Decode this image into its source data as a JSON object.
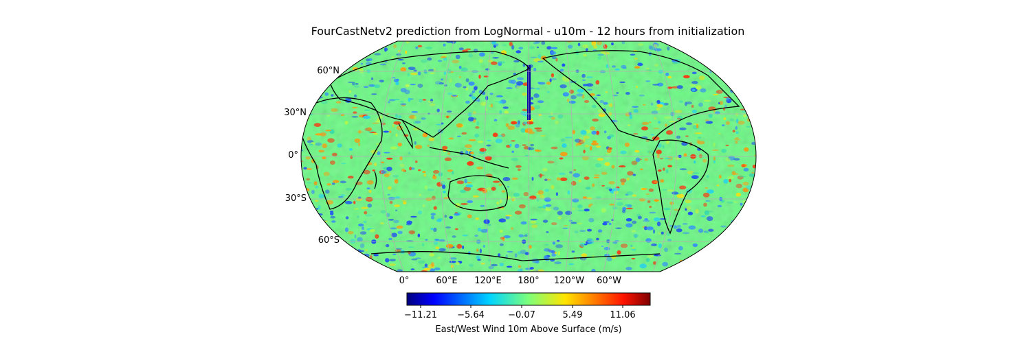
{
  "title": "FourCastNetv2 prediction from LogNormal - u10m - 12 hours from initialization",
  "map": {
    "projection": "Robinson",
    "central_longitude": 180,
    "variable": "u10m",
    "lat_labels": [
      "60°N",
      "30°N",
      "0°",
      "30°S",
      "60°S"
    ],
    "lon_labels": [
      "0°",
      "60°E",
      "120°E",
      "180°",
      "120°W",
      "60°W"
    ]
  },
  "colorbar": {
    "colormap": "jet",
    "ticks": [
      "−11.21",
      "−5.64",
      "−0.07",
      "5.49",
      "11.06"
    ],
    "min": -13.5,
    "max": 13.5,
    "label": "East/West Wind 10m Above Surface (m/s)"
  },
  "colors": {
    "coast": "#000000",
    "grid": "#b0b0b0"
  }
}
